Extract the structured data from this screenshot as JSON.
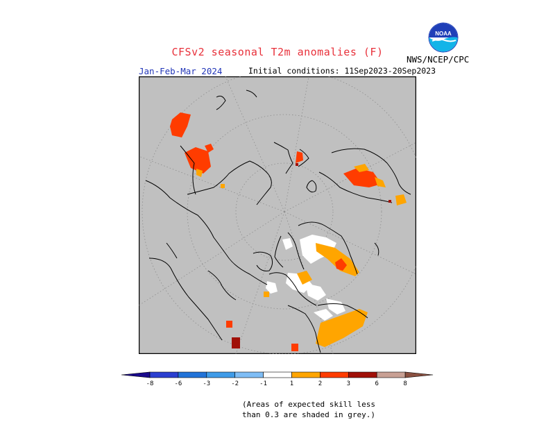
{
  "header": {
    "title": "CFSv2 seasonal T2m anomalies (F)",
    "season": "Jan-Feb-Mar 2024",
    "initial_conditions": "Initial conditions: 11Sep2023-20Sep2023",
    "agency": "NWS/NCEP/CPC",
    "logo_text": "NOAA"
  },
  "legend": {
    "labels": [
      "-8",
      "-6",
      "-3",
      "-2",
      "-1",
      "1",
      "2",
      "3",
      "6",
      "8"
    ],
    "colors": [
      "#1a0a8c",
      "#2b3fd0",
      "#2273d8",
      "#3f9be8",
      "#7fbdf5",
      "#ffffff",
      "#ffa500",
      "#ff3c00",
      "#a01008",
      "#c8a094",
      "#8a5040"
    ]
  },
  "map": {
    "background_color": "#c0c0c0",
    "coastline_color": "#000000",
    "graticule": "dotted"
  },
  "note": {
    "line1": "(Areas of expected skill less",
    "line2": "than 0.3 are shaded in grey.)"
  }
}
